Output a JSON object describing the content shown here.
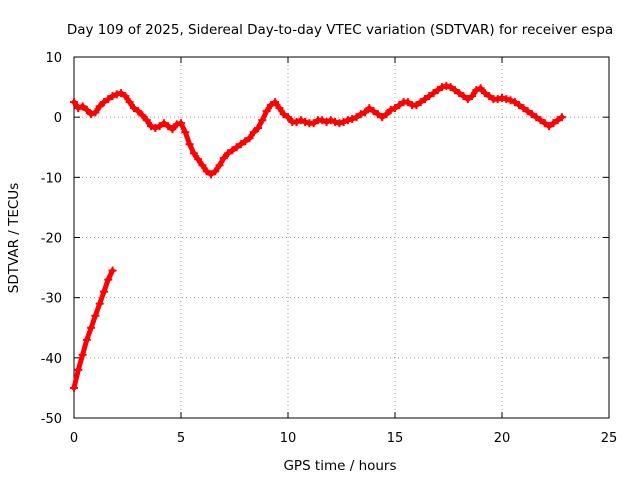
{
  "chart_data": {
    "type": "scatter",
    "title": "Day 109 of 2025, Sidereal Day-to-day VTEC variation (SDTVAR) for receiver espa",
    "xlabel": "GPS time / hours",
    "ylabel": "SDTVAR / TECUs",
    "xlim": [
      0,
      25
    ],
    "ylim": [
      -50,
      10
    ],
    "xticks": [
      0,
      5,
      10,
      15,
      20,
      25
    ],
    "yticks": [
      -50,
      -40,
      -30,
      -20,
      -10,
      0,
      10
    ],
    "grid": true,
    "marker": "plus",
    "series": [
      {
        "name": "SDTVAR",
        "color": "#ff0000",
        "x": [
          0.0,
          0.2,
          0.4,
          0.6,
          0.8,
          1.0,
          1.2,
          1.4,
          1.6,
          1.8,
          2.0,
          2.2,
          2.4,
          2.6,
          2.8,
          3.0,
          3.2,
          3.4,
          3.6,
          3.8,
          4.0,
          4.2,
          4.4,
          4.6,
          4.8,
          5.0,
          5.2,
          5.4,
          5.6,
          5.8,
          6.0,
          6.2,
          6.4,
          6.6,
          6.8,
          7.0,
          7.2,
          7.4,
          7.6,
          7.8,
          8.0,
          8.2,
          8.4,
          8.6,
          8.8,
          9.0,
          9.2,
          9.4,
          9.6,
          9.8,
          10.0,
          10.2,
          10.4,
          10.6,
          10.8,
          11.0,
          11.2,
          11.4,
          11.6,
          11.8,
          12.0,
          12.2,
          12.4,
          12.6,
          12.8,
          13.0,
          13.2,
          13.4,
          13.6,
          13.8,
          14.0,
          14.2,
          14.4,
          14.6,
          14.8,
          15.0,
          15.2,
          15.4,
          15.6,
          15.8,
          16.0,
          16.2,
          16.4,
          16.6,
          16.8,
          17.0,
          17.2,
          17.4,
          17.6,
          17.8,
          18.0,
          18.2,
          18.4,
          18.6,
          18.8,
          19.0,
          19.2,
          19.4,
          19.6,
          19.8,
          20.0,
          20.2,
          20.4,
          20.6,
          20.8,
          21.0,
          21.2,
          21.4,
          21.6,
          21.8,
          22.0,
          22.2,
          22.4,
          22.6,
          22.8,
          0.0,
          0.2,
          0.4,
          0.6,
          0.8,
          1.0,
          1.2,
          1.4,
          1.6,
          1.8
        ],
        "y": [
          2.5,
          1.5,
          1.8,
          1.2,
          0.5,
          0.8,
          1.8,
          2.5,
          3.0,
          3.5,
          3.8,
          4.0,
          3.5,
          2.5,
          1.5,
          1.0,
          0.3,
          -0.5,
          -1.5,
          -1.8,
          -1.5,
          -1.0,
          -1.5,
          -2.0,
          -1.2,
          -1.0,
          -2.5,
          -4.5,
          -6.0,
          -7.0,
          -8.0,
          -9.0,
          -9.5,
          -9.0,
          -8.0,
          -6.8,
          -6.0,
          -5.5,
          -5.0,
          -4.5,
          -4.0,
          -3.5,
          -2.5,
          -1.8,
          -0.5,
          1.0,
          2.0,
          2.5,
          1.5,
          0.5,
          0.0,
          -0.8,
          -0.8,
          -0.5,
          -0.8,
          -1.0,
          -1.0,
          -0.5,
          -0.5,
          -0.8,
          -0.5,
          -0.8,
          -1.0,
          -0.8,
          -0.5,
          -0.3,
          0.0,
          0.5,
          0.8,
          1.5,
          1.0,
          0.5,
          0.0,
          0.5,
          1.2,
          1.5,
          2.0,
          2.5,
          2.5,
          2.0,
          2.0,
          2.5,
          3.0,
          3.5,
          4.0,
          4.5,
          5.0,
          5.2,
          5.0,
          4.5,
          4.0,
          3.5,
          3.0,
          3.5,
          4.5,
          4.8,
          4.0,
          3.5,
          3.0,
          3.0,
          3.2,
          3.0,
          2.8,
          2.5,
          2.0,
          1.5,
          1.0,
          0.5,
          0.0,
          -0.5,
          -1.0,
          -1.5,
          -1.0,
          -0.5,
          0.0,
          -45.0,
          -42.0,
          -39.5,
          -37.0,
          -35.0,
          -33.0,
          -31.0,
          -29.0,
          -27.0,
          -25.5
        ]
      }
    ]
  }
}
